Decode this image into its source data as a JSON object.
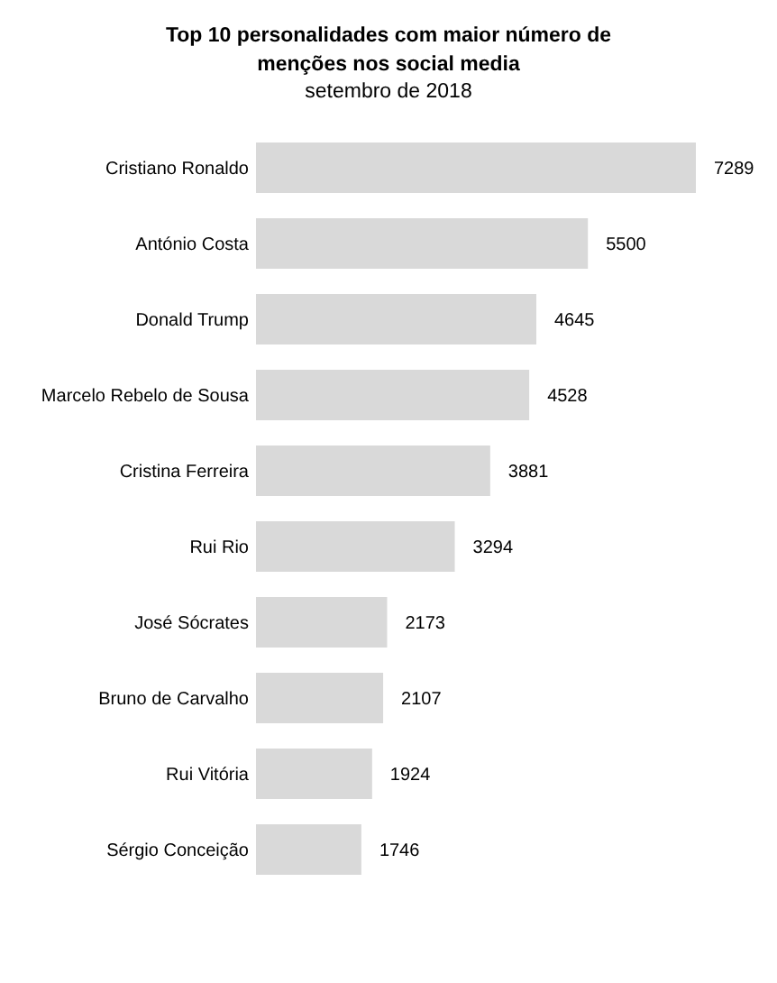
{
  "chart_data": {
    "type": "bar",
    "orientation": "horizontal",
    "title": "Top 10 personalidades com maior número de menções nos social media",
    "subtitle": "setembro de 2018",
    "categories": [
      "Cristiano Ronaldo",
      "António Costa",
      "Donald Trump",
      "Marcelo Rebelo de Sousa",
      "Cristina Ferreira",
      "Rui Rio",
      "José Sócrates",
      "Bruno de Carvalho",
      "Rui Vitória",
      "Sérgio Conceição"
    ],
    "values": [
      7289,
      5500,
      4645,
      4528,
      3881,
      3294,
      2173,
      2107,
      1924,
      1746
    ],
    "color": "#d9d9d9",
    "data_labels": true
  }
}
